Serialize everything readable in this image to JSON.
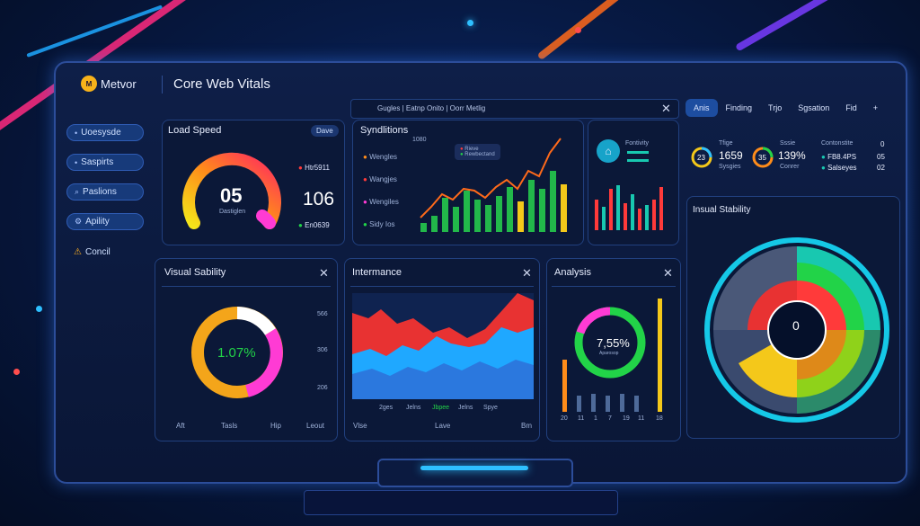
{
  "sidebar": {
    "logo": "Metvor",
    "logo_mark": "M",
    "items": [
      {
        "label": "Uoesysde"
      },
      {
        "label": "Saspirts"
      },
      {
        "label": "Paslions"
      },
      {
        "label": "Apility"
      },
      {
        "label": "Concil"
      }
    ]
  },
  "header": {
    "title": "Core Web Vitals"
  },
  "tabbar": {
    "text": "Gugles  |  Eatnp Onito  |  Oorr Metlig"
  },
  "right_tabs": [
    "Anis",
    "Finding",
    "Trjo",
    "Sgsation",
    "Fid",
    "+"
  ],
  "load_speed": {
    "title": "Load Speed",
    "badge": "Dave",
    "value": "05",
    "caption": "Dastiglen",
    "side_value": "106",
    "legend_top": "Htr5911",
    "legend_bottom": "En0639"
  },
  "syndications": {
    "title": "Syndlitions",
    "top_val": "1080",
    "legend": [
      "Wengles",
      "Wangjes",
      "Wengiles",
      "Sidy Ios"
    ],
    "mini_legend": [
      "Rieve",
      "Rewbectand"
    ]
  },
  "mini_chart": {
    "label": "Fontivity"
  },
  "stats": {
    "items": [
      {
        "ring": "23",
        "title": "Tfige",
        "value": "1659",
        "sub": "Sysgies"
      },
      {
        "ring": "35",
        "title": "Sssie",
        "value": "139%",
        "sub": "Conrer"
      },
      {
        "ring": "",
        "title": "Contonstite",
        "value": "FB8.4PS",
        "sub": "Salseyes"
      }
    ],
    "side_values": [
      "0",
      "05",
      "02"
    ]
  },
  "visual_stability": {
    "title": "Visual Sability",
    "value": "1.07%",
    "axis_right": [
      "566",
      "306",
      "206"
    ],
    "bottom_labels": [
      "Aft",
      "Tasls",
      "Hip",
      "Leout"
    ]
  },
  "intermance": {
    "title": "Intermance",
    "xlabels": [
      "2ges",
      "Jelns",
      "Jbpee",
      "Jelns",
      "Spye"
    ],
    "bottom_labels": [
      "Vlse",
      "Lave",
      "Bm"
    ]
  },
  "analysis": {
    "title": "Analysis",
    "value": "7,55%",
    "caption": "Aparosop",
    "xlabels": [
      "20",
      "11",
      "1",
      "7",
      "19",
      "11",
      "18"
    ]
  },
  "insual_stability": {
    "title": "Insual Stability",
    "center": "0"
  },
  "colors": {
    "accent_blue": "#2ec0ff",
    "green": "#22d348",
    "red": "#ff3a3a",
    "orange": "#ff8c1a",
    "yellow": "#f4e51a",
    "magenta": "#ff3bd4",
    "teal": "#18c8b0"
  }
}
